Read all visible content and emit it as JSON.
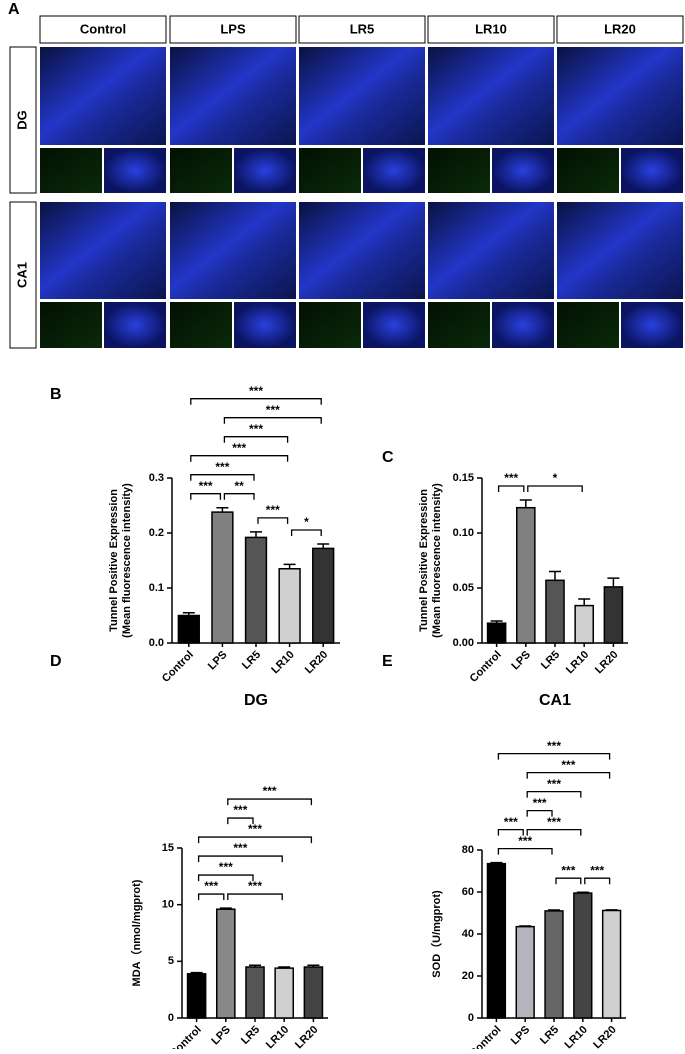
{
  "panel_a": {
    "label": "A",
    "columns": [
      "Control",
      "LPS",
      "LR5",
      "LR10",
      "LR20"
    ],
    "rows": [
      "DG",
      "CA1"
    ]
  },
  "chart_data": [
    {
      "type": "bar",
      "panel": "B",
      "xlabel": "DG",
      "ylabel": [
        "Tunnel Positive Expression",
        "(Mean fluorescence intensity)"
      ],
      "categories": [
        "Control",
        "LPS",
        "LR5",
        "LR10",
        "LR20"
      ],
      "values": [
        0.05,
        0.238,
        0.192,
        0.135,
        0.172
      ],
      "errors": [
        0.005,
        0.008,
        0.01,
        0.008,
        0.008
      ],
      "colors": [
        "#000000",
        "#808080",
        "#555555",
        "#d0d0d0",
        "#333333"
      ],
      "ylim": [
        0,
        0.3
      ],
      "yticks": [
        {
          "value": 0,
          "label": "0.0"
        },
        0.1,
        0.2,
        0.3
      ],
      "annotations": [
        {
          "between": [
            "Control",
            "LPS"
          ],
          "label": "***"
        },
        {
          "between": [
            "LPS",
            "LR5"
          ],
          "label": "**"
        },
        {
          "between": [
            "LR5",
            "LR10"
          ],
          "label": "***"
        },
        {
          "between": [
            "LR10",
            "LR20"
          ],
          "label": "*"
        },
        {
          "between": [
            "Control",
            "LR5"
          ],
          "label": "***"
        },
        {
          "between": [
            "Control",
            "LR10"
          ],
          "label": "***"
        },
        {
          "between": [
            "LPS",
            "LR10"
          ],
          "label": "***"
        },
        {
          "between": [
            "LPS",
            "LR20"
          ],
          "label": "***"
        },
        {
          "between": [
            "Control",
            "LR20"
          ],
          "label": "***"
        }
      ]
    },
    {
      "type": "bar",
      "panel": "C",
      "xlabel": "CA1",
      "ylabel": [
        "Tunnel Positive Expression",
        "(Mean fluorescence intensity)"
      ],
      "categories": [
        "Control",
        "LPS",
        "LR5",
        "LR10",
        "LR20"
      ],
      "values": [
        0.018,
        0.123,
        0.057,
        0.034,
        0.051
      ],
      "errors": [
        0.002,
        0.007,
        0.008,
        0.006,
        0.008
      ],
      "colors": [
        "#000000",
        "#808080",
        "#555555",
        "#d0d0d0",
        "#333333"
      ],
      "ylim": [
        0,
        0.15
      ],
      "yticks": [
        {
          "value": 0,
          "label": "0.00"
        },
        0.05,
        {
          "value": 0.1,
          "label": "0.10"
        },
        0.15
      ],
      "annotations": [
        {
          "between": [
            "Control",
            "LPS"
          ],
          "label": "***"
        },
        {
          "between": [
            "LPS",
            "LR10"
          ],
          "label": "*"
        }
      ]
    },
    {
      "type": "bar",
      "panel": "D",
      "ylabel": [
        "MDA（nmol/mgprot)"
      ],
      "categories": [
        "Control",
        "LPS",
        "LR5",
        "LR10",
        "LR20"
      ],
      "values": [
        3.9,
        9.6,
        4.5,
        4.4,
        4.5
      ],
      "errors": [
        0.1,
        0.1,
        0.15,
        0.1,
        0.15
      ],
      "colors": [
        "#000000",
        "#888888",
        "#555555",
        "#d0d0d0",
        "#444444"
      ],
      "ylim": [
        0,
        15
      ],
      "yticks": [
        0,
        5,
        10,
        15
      ],
      "annotations": [
        {
          "between": [
            "Control",
            "LPS"
          ],
          "label": "***"
        },
        {
          "between": [
            "LPS",
            "LR10"
          ],
          "label": "***"
        },
        {
          "between": [
            "Control",
            "LR5"
          ],
          "label": "***"
        },
        {
          "between": [
            "Control",
            "LR10"
          ],
          "label": "***"
        },
        {
          "between": [
            "Control",
            "LR20"
          ],
          "label": "***"
        },
        {
          "between": [
            "LPS",
            "LR5"
          ],
          "label": "***"
        },
        {
          "between": [
            "LPS",
            "LR20"
          ],
          "label": "***"
        }
      ]
    },
    {
      "type": "bar",
      "panel": "E",
      "ylabel": [
        "SOD（U/mgprot)"
      ],
      "categories": [
        "Control",
        "LPS",
        "LR5",
        "LR10",
        "LR20"
      ],
      "values": [
        73.5,
        43.5,
        51,
        59.5,
        51.2
      ],
      "errors": [
        0.5,
        0.3,
        0.4,
        0.4,
        0.3
      ],
      "colors": [
        "#000000",
        "#b4b4bc",
        "#666666",
        "#444444",
        "#d0d0d0"
      ],
      "ylim": [
        0,
        80
      ],
      "yticks": [
        0,
        20,
        40,
        60,
        80
      ],
      "annotations": [
        {
          "between": [
            "Control",
            "LR5"
          ],
          "label": "***"
        },
        {
          "between": [
            "LR5",
            "LR10"
          ],
          "label": "***"
        },
        {
          "between": [
            "Control",
            "LPS"
          ],
          "label": "***"
        },
        {
          "between": [
            "LPS",
            "LR10"
          ],
          "label": "***"
        },
        {
          "between": [
            "LR10",
            "LR20"
          ],
          "label": "***"
        },
        {
          "between": [
            "LPS",
            "LR5"
          ],
          "label": "***"
        },
        {
          "between": [
            "LPS",
            "LR10"
          ],
          "label": "***"
        },
        {
          "between": [
            "LPS",
            "LR20"
          ],
          "label": "***"
        },
        {
          "between": [
            "Control",
            "LR20"
          ],
          "label": "***"
        }
      ]
    }
  ]
}
